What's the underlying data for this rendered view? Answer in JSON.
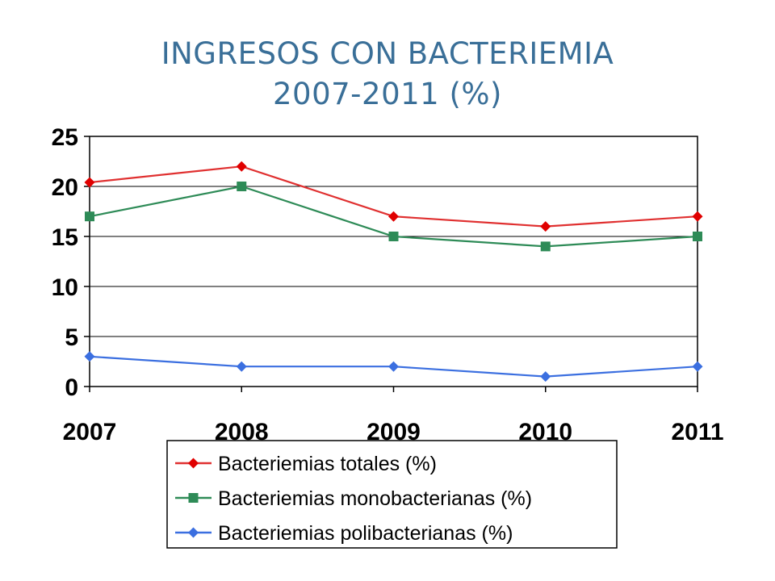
{
  "title": {
    "line1": "INGRESOS CON BACTERIEMIA",
    "line2": "2007-2011 (%)"
  },
  "chart_data": {
    "type": "line",
    "title": "INGRESOS CON BACTERIEMIA 2007-2011 (%)",
    "x": [
      "2007",
      "2008",
      "2009",
      "2010",
      "2011"
    ],
    "ylim": [
      0,
      25
    ],
    "yticks": [
      0,
      5,
      10,
      15,
      20,
      25
    ],
    "grid": true,
    "legend_position": "bottom",
    "series": [
      {
        "name": "Bacteriemias totales (%)",
        "values": [
          20.4,
          22,
          17,
          16,
          17
        ],
        "color": "#e00000",
        "marker": "diamond",
        "line_color": "#e03030"
      },
      {
        "name": "Bacteriemias monobacterianas (%)",
        "values": [
          17,
          20,
          15,
          14,
          15
        ],
        "color": "#2e8b57",
        "marker": "square",
        "line_color": "#2e8b57"
      },
      {
        "name": "Bacteriemias polibacterianas (%)",
        "values": [
          3,
          2,
          2,
          1,
          2
        ],
        "color": "#3b6fe0",
        "marker": "diamond",
        "line_color": "#3b6fe0"
      }
    ]
  }
}
